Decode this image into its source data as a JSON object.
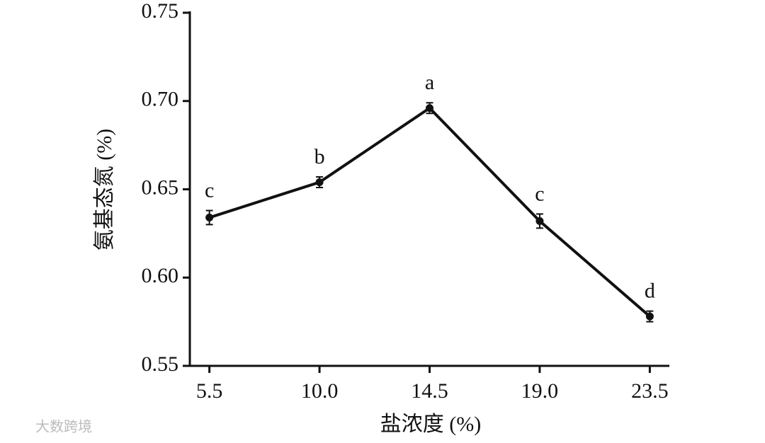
{
  "chart_data": {
    "type": "line",
    "x_label": "盐浓度 (%)",
    "y_label": "氨基态氮 (%)",
    "x": [
      5.5,
      10,
      14.5,
      19,
      23.5
    ],
    "series": [
      {
        "color": "#111111",
        "values": [
          0.634,
          0.654,
          0.696,
          0.632,
          0.578
        ],
        "errors": [
          0.004,
          0.003,
          0.003,
          0.004,
          0.003
        ]
      }
    ],
    "annotations": [
      "c",
      "b",
      "a",
      "c",
      "d"
    ],
    "xlim": [
      4.7,
      24.3
    ],
    "xticks": [
      {
        "value": 5.5,
        "label": "5.5"
      },
      {
        "value": 10,
        "label": "10.0"
      },
      {
        "value": 14.5,
        "label": "14.5"
      },
      {
        "value": 19,
        "label": "19.0"
      },
      {
        "value": 23.5,
        "label": "23.5"
      }
    ],
    "ylim": [
      0.55,
      0.75
    ],
    "yticks": [
      0.55,
      {
        "value": 0.6,
        "label": "0.60"
      },
      0.65,
      {
        "value": 0.7,
        "label": "0.70"
      },
      0.75
    ],
    "grid": false,
    "watermark": "大数跨境"
  }
}
